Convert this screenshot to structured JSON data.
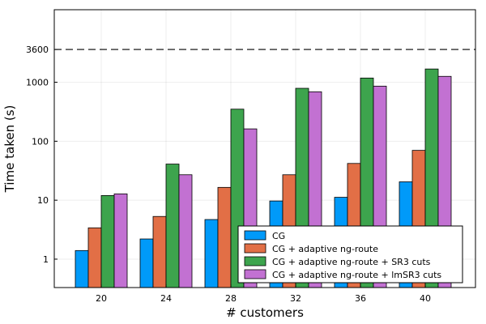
{
  "chart_data": {
    "type": "bar",
    "xlabel": "# customers",
    "ylabel": "Time taken (s)",
    "scale": "log",
    "categories": [
      "20",
      "24",
      "28",
      "32",
      "36",
      "40"
    ],
    "y_ticks": [
      {
        "value": 1,
        "label": "1"
      },
      {
        "value": 10,
        "label": "10"
      },
      {
        "value": 100,
        "label": "100"
      },
      {
        "value": 1000,
        "label": "1000"
      },
      {
        "value": 3600,
        "label": "3600"
      }
    ],
    "ylim": [
      0.33,
      17000
    ],
    "reference_line": {
      "value": 3600,
      "style": "dashed"
    },
    "grid": true,
    "legend_position": "bottom-right",
    "series": [
      {
        "name": "CG",
        "color": "#009af9",
        "values": [
          1.4,
          2.2,
          4.7,
          9.7,
          11.2,
          20.5
        ]
      },
      {
        "name": "CG + adaptive ng-route",
        "color": "#e26f46",
        "values": [
          3.4,
          5.3,
          16.5,
          27,
          42,
          70
        ]
      },
      {
        "name": "CG + adaptive ng-route + SR3 cuts",
        "color": "#3da44d",
        "values": [
          12,
          41,
          350,
          790,
          1180,
          1680
        ]
      },
      {
        "name": "CG + adaptive ng-route + lmSR3 cuts",
        "color": "#c271d2",
        "values": [
          12.8,
          27,
          162,
          690,
          860,
          1260
        ]
      }
    ]
  }
}
